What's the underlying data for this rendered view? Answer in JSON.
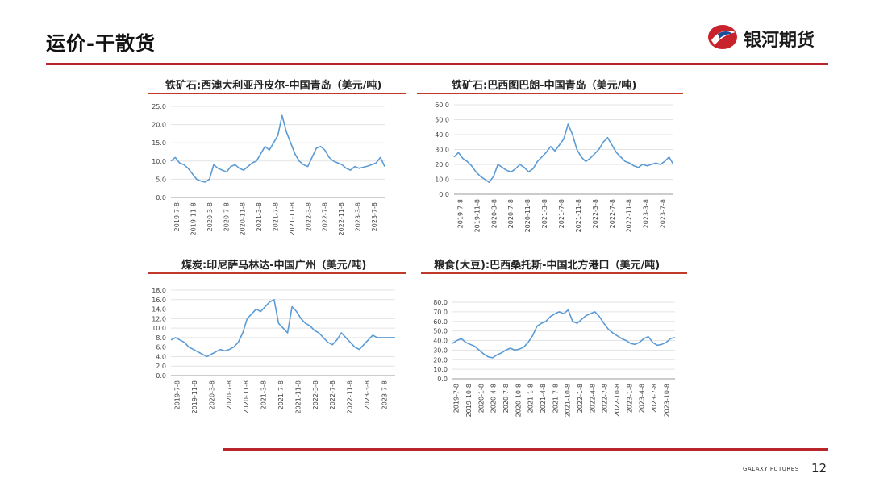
{
  "page": {
    "title": "运价-干散货",
    "brand_name": "银河期货",
    "footer_brand": "GALAXY FUTURES",
    "page_number": "12",
    "colors": {
      "accent": "#b8262b",
      "series": "#5b9bd5"
    }
  },
  "chart_data": [
    {
      "type": "line",
      "title": "铁矿石:西澳大利亚丹皮尔-中国青岛（美元/吨)",
      "categories": [
        "2019-7-8",
        "2019-11-8",
        "2020-3-8",
        "2020-7-8",
        "2020-11-8",
        "2021-3-8",
        "2021-7-8",
        "2021-11-8",
        "2022-3-8",
        "2022-7-8",
        "2022-11-8",
        "2023-3-8",
        "2023-7-8"
      ],
      "y_ticks": [
        "25.0",
        "20.0",
        "15.0",
        "10.0",
        "5.0",
        "0.0"
      ],
      "ylim": [
        0,
        25
      ],
      "x_range": [
        0,
        50
      ],
      "series": [
        {
          "name": "铁矿石:西澳大利亚丹皮尔-中国青岛",
          "x": [
            0,
            1,
            2,
            3,
            4,
            5,
            6,
            7,
            8,
            9,
            10,
            11,
            12,
            13,
            14,
            15,
            16,
            17,
            18,
            19,
            20,
            21,
            22,
            23,
            24,
            25,
            26,
            27,
            28,
            29,
            30,
            31,
            32,
            33,
            34,
            35,
            36,
            37,
            38,
            39,
            40,
            41,
            42,
            43,
            44,
            45,
            46,
            47,
            48,
            49,
            50
          ],
          "values": [
            10,
            11,
            9.5,
            9,
            8,
            6.5,
            5,
            4.5,
            4.2,
            5,
            9,
            8,
            7.5,
            7,
            8.5,
            9,
            8,
            7.5,
            8.5,
            9.5,
            10,
            12,
            14,
            13,
            15,
            17,
            22.5,
            18,
            15,
            12,
            10,
            9,
            8.5,
            11,
            13.5,
            14,
            13,
            11,
            10,
            9.5,
            9,
            8,
            7.5,
            8.5,
            8,
            8.3,
            8.6,
            9,
            9.5,
            11,
            8.5
          ]
        }
      ]
    },
    {
      "type": "line",
      "title": "铁矿石:巴西图巴朗-中国青岛（美元/吨)",
      "categories": [
        "2019-7-8",
        "2019-11-8",
        "2020-3-8",
        "2020-7-8",
        "2020-11-8",
        "2021-3-8",
        "2021-7-8",
        "2021-11-8",
        "2022-3-8",
        "2022-7-8",
        "2022-11-8",
        "2023-3-8",
        "2023-7-8"
      ],
      "y_ticks": [
        "60.0",
        "50.0",
        "40.0",
        "30.0",
        "20.0",
        "10.0",
        "0.0"
      ],
      "ylim": [
        0,
        60
      ],
      "x_range": [
        0,
        50
      ],
      "series": [
        {
          "name": "铁矿石:巴西图巴朗-中国青岛",
          "x": [
            0,
            1,
            2,
            3,
            4,
            5,
            6,
            7,
            8,
            9,
            10,
            11,
            12,
            13,
            14,
            15,
            16,
            17,
            18,
            19,
            20,
            21,
            22,
            23,
            24,
            25,
            26,
            27,
            28,
            29,
            30,
            31,
            32,
            33,
            34,
            35,
            36,
            37,
            38,
            39,
            40,
            41,
            42,
            43,
            44,
            45,
            46,
            47,
            48,
            49,
            50
          ],
          "values": [
            25,
            28,
            24,
            22,
            19,
            15,
            12,
            10,
            8,
            12,
            20,
            18,
            16,
            15,
            17,
            20,
            18,
            15,
            17,
            22,
            25,
            28,
            32,
            29,
            33,
            37,
            47,
            40,
            30,
            25,
            22,
            24,
            27,
            30,
            35,
            38,
            33,
            28,
            25,
            22,
            21,
            19,
            18,
            20,
            19,
            20,
            21,
            20,
            22,
            25,
            20
          ]
        }
      ]
    },
    {
      "type": "line",
      "title": "煤炭:印尼萨马林达-中国广州（美元/吨)",
      "categories": [
        "2019-7-8",
        "2019-11-8",
        "2020-3-8",
        "2020-7-8",
        "2020-11-8",
        "2021-3-8",
        "2021-7-8",
        "2021-11-8",
        "2022-3-8",
        "2022-7-8",
        "2022-11-8",
        "2023-3-8",
        "2023-7-8"
      ],
      "y_ticks": [
        "18.0",
        "16.0",
        "14.0",
        "12.0",
        "10.0",
        "8.0",
        "6.0",
        "4.0",
        "2.0",
        "0.0"
      ],
      "ylim": [
        0,
        18
      ],
      "x_range": [
        0,
        50
      ],
      "series": [
        {
          "name": "煤炭:印尼萨马林达-中国广州",
          "x": [
            0,
            1,
            2,
            3,
            4,
            5,
            6,
            7,
            8,
            9,
            10,
            11,
            12,
            13,
            14,
            15,
            16,
            17,
            18,
            19,
            20,
            21,
            22,
            23,
            24,
            25,
            26,
            27,
            28,
            29,
            30,
            31,
            32,
            33,
            34,
            35,
            36,
            37,
            38,
            39,
            40,
            41,
            42,
            43,
            44,
            45,
            46,
            47,
            48,
            49,
            50
          ],
          "values": [
            7.5,
            8,
            7.5,
            7,
            6,
            5.5,
            5,
            4.5,
            4,
            4.5,
            5,
            5.5,
            5.2,
            5.5,
            6,
            7,
            9,
            12,
            13,
            14,
            13.5,
            14.5,
            15.5,
            16,
            11,
            10,
            9,
            14.5,
            13.5,
            12,
            11,
            10.5,
            9.5,
            9,
            8,
            7,
            6.5,
            7.5,
            9,
            8,
            7,
            6,
            5.5,
            6.5,
            7.5,
            8.5,
            8,
            8,
            8,
            8,
            8
          ]
        }
      ]
    },
    {
      "type": "line",
      "title": "粮食(大豆):巴西桑托斯-中国北方港口（美元/吨)",
      "categories": [
        "2019-7-8",
        "2019-10-8",
        "2020-1-8",
        "2020-4-8",
        "2020-7-8",
        "2020-10-8",
        "2021-1-8",
        "2021-4-8",
        "2021-7-8",
        "2021-10-8",
        "2022-1-8",
        "2022-4-8",
        "2022-7-8",
        "2022-10-8",
        "2023-1-8",
        "2023-4-8",
        "2023-7-8",
        "2023-10-8"
      ],
      "y_ticks": [
        "80.0",
        "70.0",
        "60.0",
        "50.0",
        "40.0",
        "30.0",
        "20.0",
        "10.0",
        "0.0"
      ],
      "ylim": [
        0,
        80
      ],
      "x_range": [
        0,
        50
      ],
      "series": [
        {
          "name": "粮食(大豆):巴西桑托斯-中国北方港口",
          "x": [
            0,
            1,
            2,
            3,
            4,
            5,
            6,
            7,
            8,
            9,
            10,
            11,
            12,
            13,
            14,
            15,
            16,
            17,
            18,
            19,
            20,
            21,
            22,
            23,
            24,
            25,
            26,
            27,
            28,
            29,
            30,
            31,
            32,
            33,
            34,
            35,
            36,
            37,
            38,
            39,
            40,
            41,
            42,
            43,
            44,
            45,
            46,
            47,
            48,
            49,
            50
          ],
          "values": [
            37,
            40,
            42,
            38,
            36,
            34,
            30,
            26,
            23,
            22,
            25,
            27,
            30,
            32,
            30,
            31,
            33,
            38,
            45,
            55,
            58,
            60,
            65,
            68,
            70,
            68,
            72,
            60,
            58,
            62,
            66,
            68,
            70,
            65,
            58,
            52,
            48,
            45,
            42,
            40,
            37,
            36,
            38,
            42,
            44,
            38,
            35,
            36,
            38,
            42,
            43
          ]
        }
      ]
    }
  ]
}
